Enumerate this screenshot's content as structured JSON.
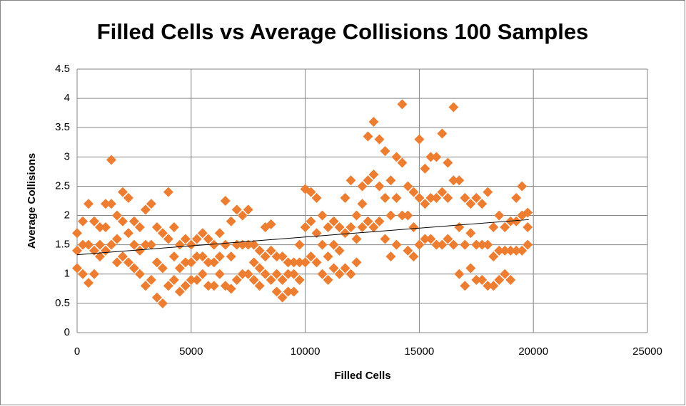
{
  "chart_data": {
    "type": "scatter",
    "title": "Filled Cells vs Average Collisions 100 Samples",
    "x_label": "Filled Cells",
    "y_label": "Average Collisions",
    "xlim": [
      0,
      25000
    ],
    "xticks": [
      0,
      5000,
      10000,
      15000,
      20000,
      25000
    ],
    "ylim": [
      0,
      4.5
    ],
    "yticks": [
      0,
      0.5,
      1,
      1.5,
      2,
      2.5,
      3,
      3.5,
      4,
      4.5
    ],
    "grid": true,
    "series": [
      {
        "color": "#ed7d31",
        "x": [
          0,
          250,
          500,
          750,
          1000,
          1250,
          1500,
          1750,
          2000,
          2250,
          2500,
          2750,
          3000,
          3250,
          3500,
          3750,
          4000,
          4250,
          4500,
          4750,
          5000,
          5250,
          5500,
          5750,
          6000,
          6250,
          6500,
          6750,
          7000,
          7250,
          7500,
          7750,
          8000,
          8250,
          8500,
          8750,
          9000,
          9250,
          9500,
          9750,
          10000,
          10250,
          10500,
          10750,
          11000,
          11250,
          11500,
          11750,
          12000,
          12250,
          12500,
          12750,
          13000,
          13250,
          13500,
          13750,
          14000,
          14250,
          14500,
          14750,
          15000,
          15250,
          15500,
          15750,
          16000,
          16250,
          16500,
          16750,
          17000,
          17250,
          17500,
          17750,
          18000,
          18250,
          18500,
          18750,
          19000,
          19250,
          19500,
          19750,
          0,
          250,
          500,
          750,
          1000,
          1250,
          1500,
          1750,
          2000,
          2250,
          2500,
          2750,
          3000,
          3250,
          3500,
          3750,
          4000,
          4250,
          4500,
          4750,
          5000,
          5250,
          5500,
          5750,
          6000,
          6250,
          6500,
          6750,
          7000,
          7250,
          7500,
          7750,
          8000,
          8250,
          8500,
          8750,
          9000,
          9250,
          9500,
          9750,
          10000,
          10250,
          10500,
          10750,
          11000,
          11250,
          11500,
          11750,
          12000,
          12250,
          12500,
          12750,
          13000,
          13250,
          13500,
          13750,
          14000,
          14250,
          14500,
          14750,
          15000,
          15250,
          15500,
          15750,
          16000,
          16250,
          16500,
          16750,
          17000,
          17250,
          17500,
          17750,
          18000,
          18250,
          18500,
          18750,
          19000,
          19250,
          19500,
          19750,
          0,
          250,
          500,
          750,
          1000,
          1250,
          1500,
          1750,
          2000,
          2250,
          2500,
          2750,
          3000,
          3250,
          3500,
          3750,
          4000,
          4250,
          4500,
          4750,
          5000,
          5250,
          5500,
          5750,
          6000,
          6250,
          6500,
          6750,
          7000,
          7250,
          7500,
          7750,
          8000,
          8250,
          8500,
          8750,
          9000,
          9250,
          9500,
          9750,
          10000,
          10250,
          10500,
          10750,
          11000,
          11250,
          11500,
          11750,
          12000,
          12250,
          12500,
          12750,
          13000,
          13250,
          13500,
          13750,
          14000,
          14250,
          14500,
          14750,
          15000,
          15250,
          15500,
          15750,
          16000,
          16250,
          16500,
          16750,
          17000,
          17250,
          17500,
          17750,
          18000,
          18250,
          18500,
          18750,
          19000,
          19250,
          19500,
          19750
        ],
        "values": [
          1.1,
          1.0,
          0.85,
          1.0,
          1.3,
          1.4,
          1.5,
          1.2,
          1.3,
          1.2,
          1.1,
          1.0,
          0.8,
          0.9,
          0.6,
          0.5,
          0.8,
          0.9,
          0.7,
          0.8,
          0.9,
          0.9,
          1.0,
          0.8,
          0.8,
          1.0,
          0.8,
          0.75,
          0.9,
          1.0,
          1.0,
          0.9,
          0.8,
          1.0,
          0.9,
          0.7,
          0.6,
          0.7,
          0.7,
          0.9,
          1.2,
          1.3,
          1.2,
          1.0,
          0.9,
          1.1,
          1.0,
          1.1,
          1.0,
          1.2,
          1.8,
          1.9,
          1.8,
          1.9,
          1.6,
          1.3,
          1.5,
          2.0,
          1.4,
          1.3,
          1.5,
          1.6,
          1.6,
          1.5,
          1.5,
          1.6,
          1.5,
          1.0,
          0.8,
          1.1,
          0.9,
          0.9,
          0.8,
          0.8,
          0.9,
          1.0,
          0.9,
          1.4,
          1.4,
          1.5,
          1.4,
          1.5,
          1.5,
          1.4,
          1.5,
          1.8,
          2.2,
          1.6,
          1.9,
          1.7,
          1.5,
          1.4,
          1.5,
          1.5,
          1.2,
          1.1,
          1.6,
          1.3,
          1.1,
          1.2,
          1.2,
          1.3,
          1.3,
          1.2,
          1.2,
          1.3,
          1.5,
          1.3,
          1.5,
          1.5,
          1.5,
          1.2,
          1.1,
          1.3,
          1.4,
          1.0,
          0.9,
          1.0,
          1.0,
          1.2,
          1.8,
          1.9,
          1.7,
          1.5,
          1.3,
          1.5,
          1.4,
          1.7,
          1.8,
          1.6,
          2.2,
          2.6,
          2.7,
          2.5,
          2.3,
          2.0,
          2.3,
          2.9,
          2.0,
          1.8,
          2.3,
          2.2,
          2.3,
          2.3,
          2.4,
          2.3,
          2.6,
          1.8,
          1.5,
          1.7,
          1.5,
          1.5,
          1.5,
          1.3,
          1.4,
          1.4,
          1.4,
          1.9,
          2.0,
          1.8,
          1.7,
          1.9,
          2.2,
          1.9,
          1.8,
          2.2,
          2.95,
          2.0,
          2.4,
          2.3,
          1.9,
          1.8,
          2.1,
          2.2,
          1.8,
          1.7,
          2.4,
          1.8,
          1.5,
          1.6,
          1.5,
          1.6,
          1.7,
          1.6,
          1.5,
          1.7,
          2.25,
          1.9,
          2.1,
          2.0,
          2.1,
          1.5,
          1.4,
          1.8,
          1.85,
          1.3,
          1.3,
          1.2,
          1.2,
          1.5,
          2.45,
          2.4,
          2.3,
          2.0,
          1.8,
          1.9,
          1.8,
          2.3,
          2.6,
          2.0,
          2.5,
          3.35,
          3.6,
          3.3,
          3.1,
          2.6,
          3.0,
          3.9,
          2.5,
          2.4,
          3.3,
          2.8,
          3.0,
          3.0,
          3.4,
          2.9,
          3.85,
          2.6,
          2.3,
          2.2,
          2.3,
          2.2,
          2.4,
          1.8,
          2.0,
          1.8,
          1.9,
          2.3,
          2.5,
          2.05
        ]
      }
    ],
    "trendline": {
      "color": "#000000",
      "x": [
        0,
        19800
      ],
      "values": [
        1.33,
        1.93
      ]
    }
  }
}
